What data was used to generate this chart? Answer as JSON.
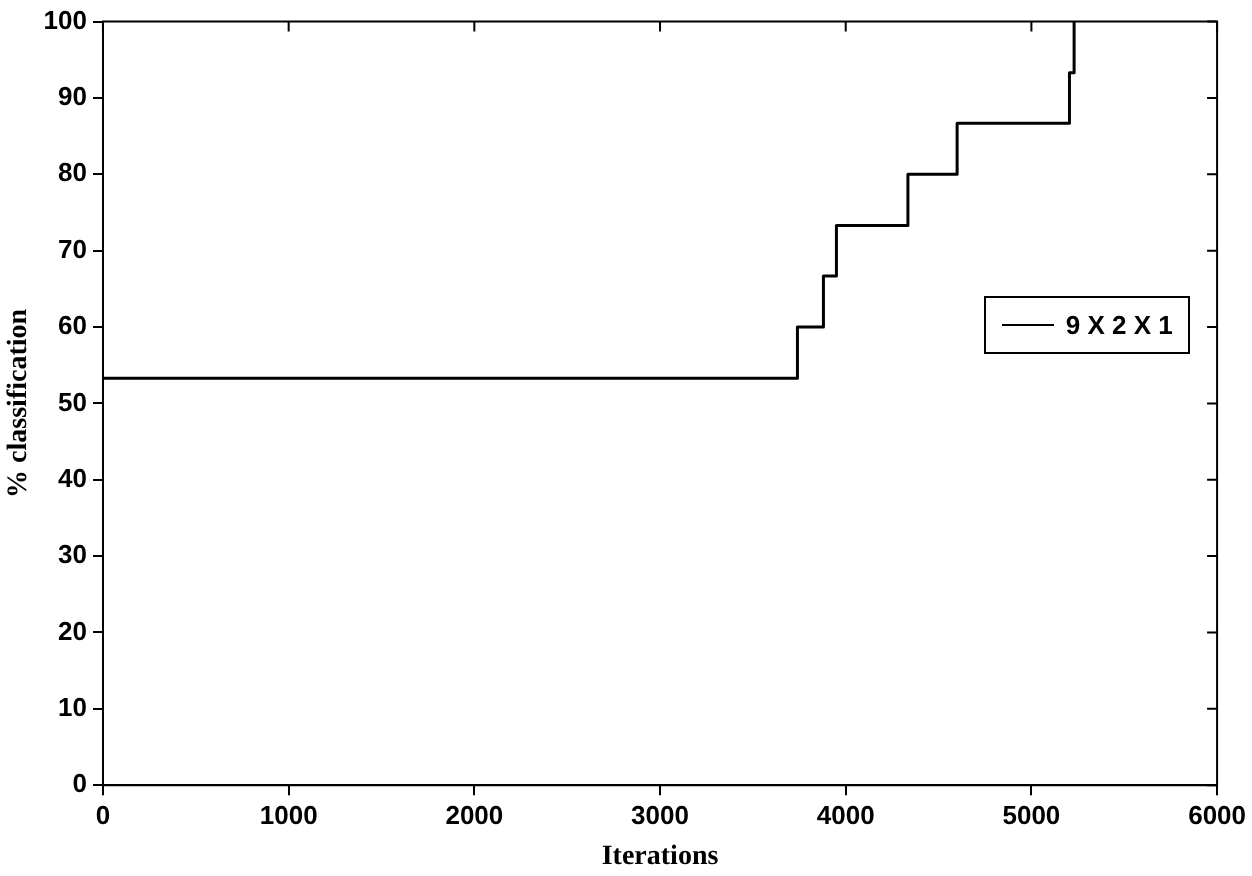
{
  "chart_data": {
    "type": "step",
    "xlabel": "Iterations",
    "ylabel": "% classification",
    "xlim": [
      0,
      6000
    ],
    "xticks": [
      0,
      1000,
      2000,
      3000,
      4000,
      5000,
      6000
    ],
    "ylim": [
      0,
      100
    ],
    "yticks": [
      0,
      10,
      20,
      30,
      40,
      50,
      60,
      70,
      80,
      90,
      100
    ],
    "grid": false,
    "legend": "right",
    "series": [
      {
        "name": "9 X 2 X 1",
        "color": "#000000",
        "x": [
          0,
          3740,
          3880,
          3950,
          4335,
          4600,
          5205,
          5230
        ],
        "values": [
          53.3,
          60,
          66.7,
          73.3,
          80,
          86.7,
          93.3,
          100
        ]
      }
    ]
  }
}
